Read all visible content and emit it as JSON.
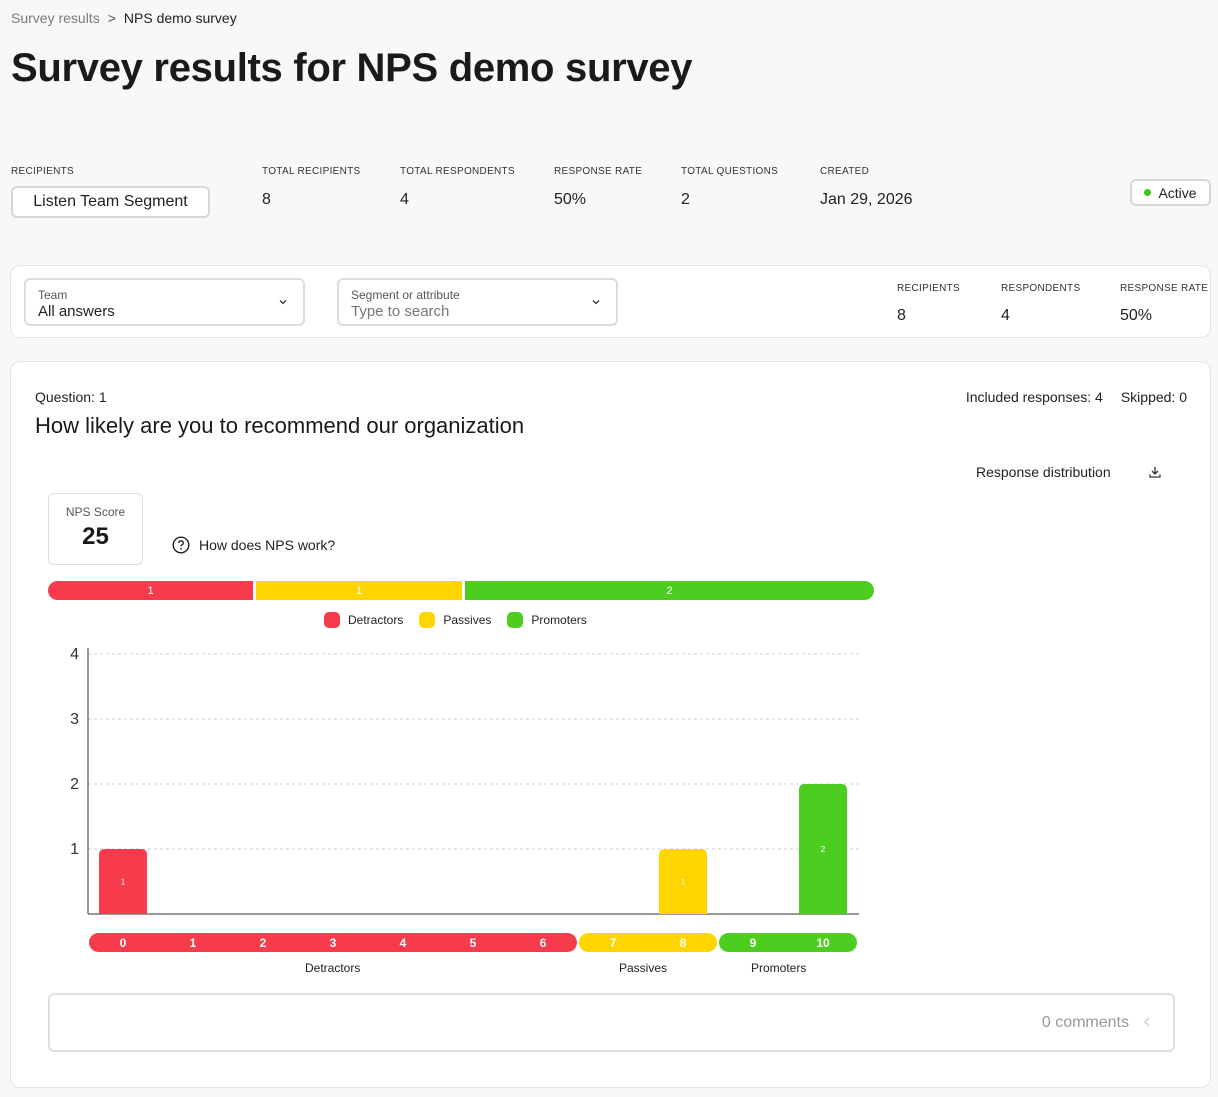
{
  "breadcrumb": {
    "parent": "Survey results",
    "separator": ">",
    "current": "NPS demo survey"
  },
  "page_title": "Survey results for NPS demo survey",
  "summary": {
    "recipients_label": "RECIPIENTS",
    "segment": "Listen Team Segment",
    "total_recipients_label": "TOTAL RECIPIENTS",
    "total_recipients": "8",
    "total_respondents_label": "TOTAL RESPONDENTS",
    "total_respondents": "4",
    "response_rate_label": "RESPONSE RATE",
    "response_rate": "50%",
    "total_questions_label": "TOTAL QUESTIONS",
    "total_questions": "2",
    "created_label": "CREATED",
    "created": "Jan 29, 2026",
    "status": "Active",
    "status_color": "#3bc41a"
  },
  "filters": {
    "team_label": "Team",
    "team_value": "All answers",
    "segment_label": "Segment or attribute",
    "segment_placeholder": "Type to search",
    "recipients_label": "RECIPIENTS",
    "recipients": "8",
    "respondents_label": "RESPONDENTS",
    "respondents": "4",
    "rate_label": "RESPONSE RATE",
    "rate": "50%"
  },
  "question": {
    "number": "Question: 1",
    "title": "How likely are you to recommend our organization",
    "included": "Included responses: 4",
    "skipped": "Skipped: 0",
    "response_distribution": "Response distribution",
    "nps_label": "NPS Score",
    "nps_value": "25",
    "nps_help": "How does NPS work?",
    "comments": "0 comments"
  },
  "colors": {
    "detractor": "#f53b4c",
    "passive": "#ffd500",
    "promoter": "#4ccd1f"
  },
  "chart_data": {
    "type": "bar",
    "categories": [
      "0",
      "1",
      "2",
      "3",
      "4",
      "5",
      "6",
      "7",
      "8",
      "9",
      "10"
    ],
    "values": [
      1,
      0,
      0,
      0,
      0,
      0,
      0,
      0,
      1,
      0,
      2
    ],
    "ylim": [
      0,
      4
    ],
    "yticks": [
      "1",
      "2",
      "3",
      "4"
    ],
    "grid": true,
    "groups": [
      {
        "name": "Detractors",
        "scores": [
          "0",
          "1",
          "2",
          "3",
          "4",
          "5",
          "6"
        ],
        "count": "1"
      },
      {
        "name": "Passives",
        "scores": [
          "7",
          "8"
        ],
        "count": "1"
      },
      {
        "name": "Promoters",
        "scores": [
          "9",
          "10"
        ],
        "count": "2"
      }
    ],
    "legend": [
      "Detractors",
      "Passives",
      "Promoters"
    ],
    "legend_position": "top-center"
  }
}
